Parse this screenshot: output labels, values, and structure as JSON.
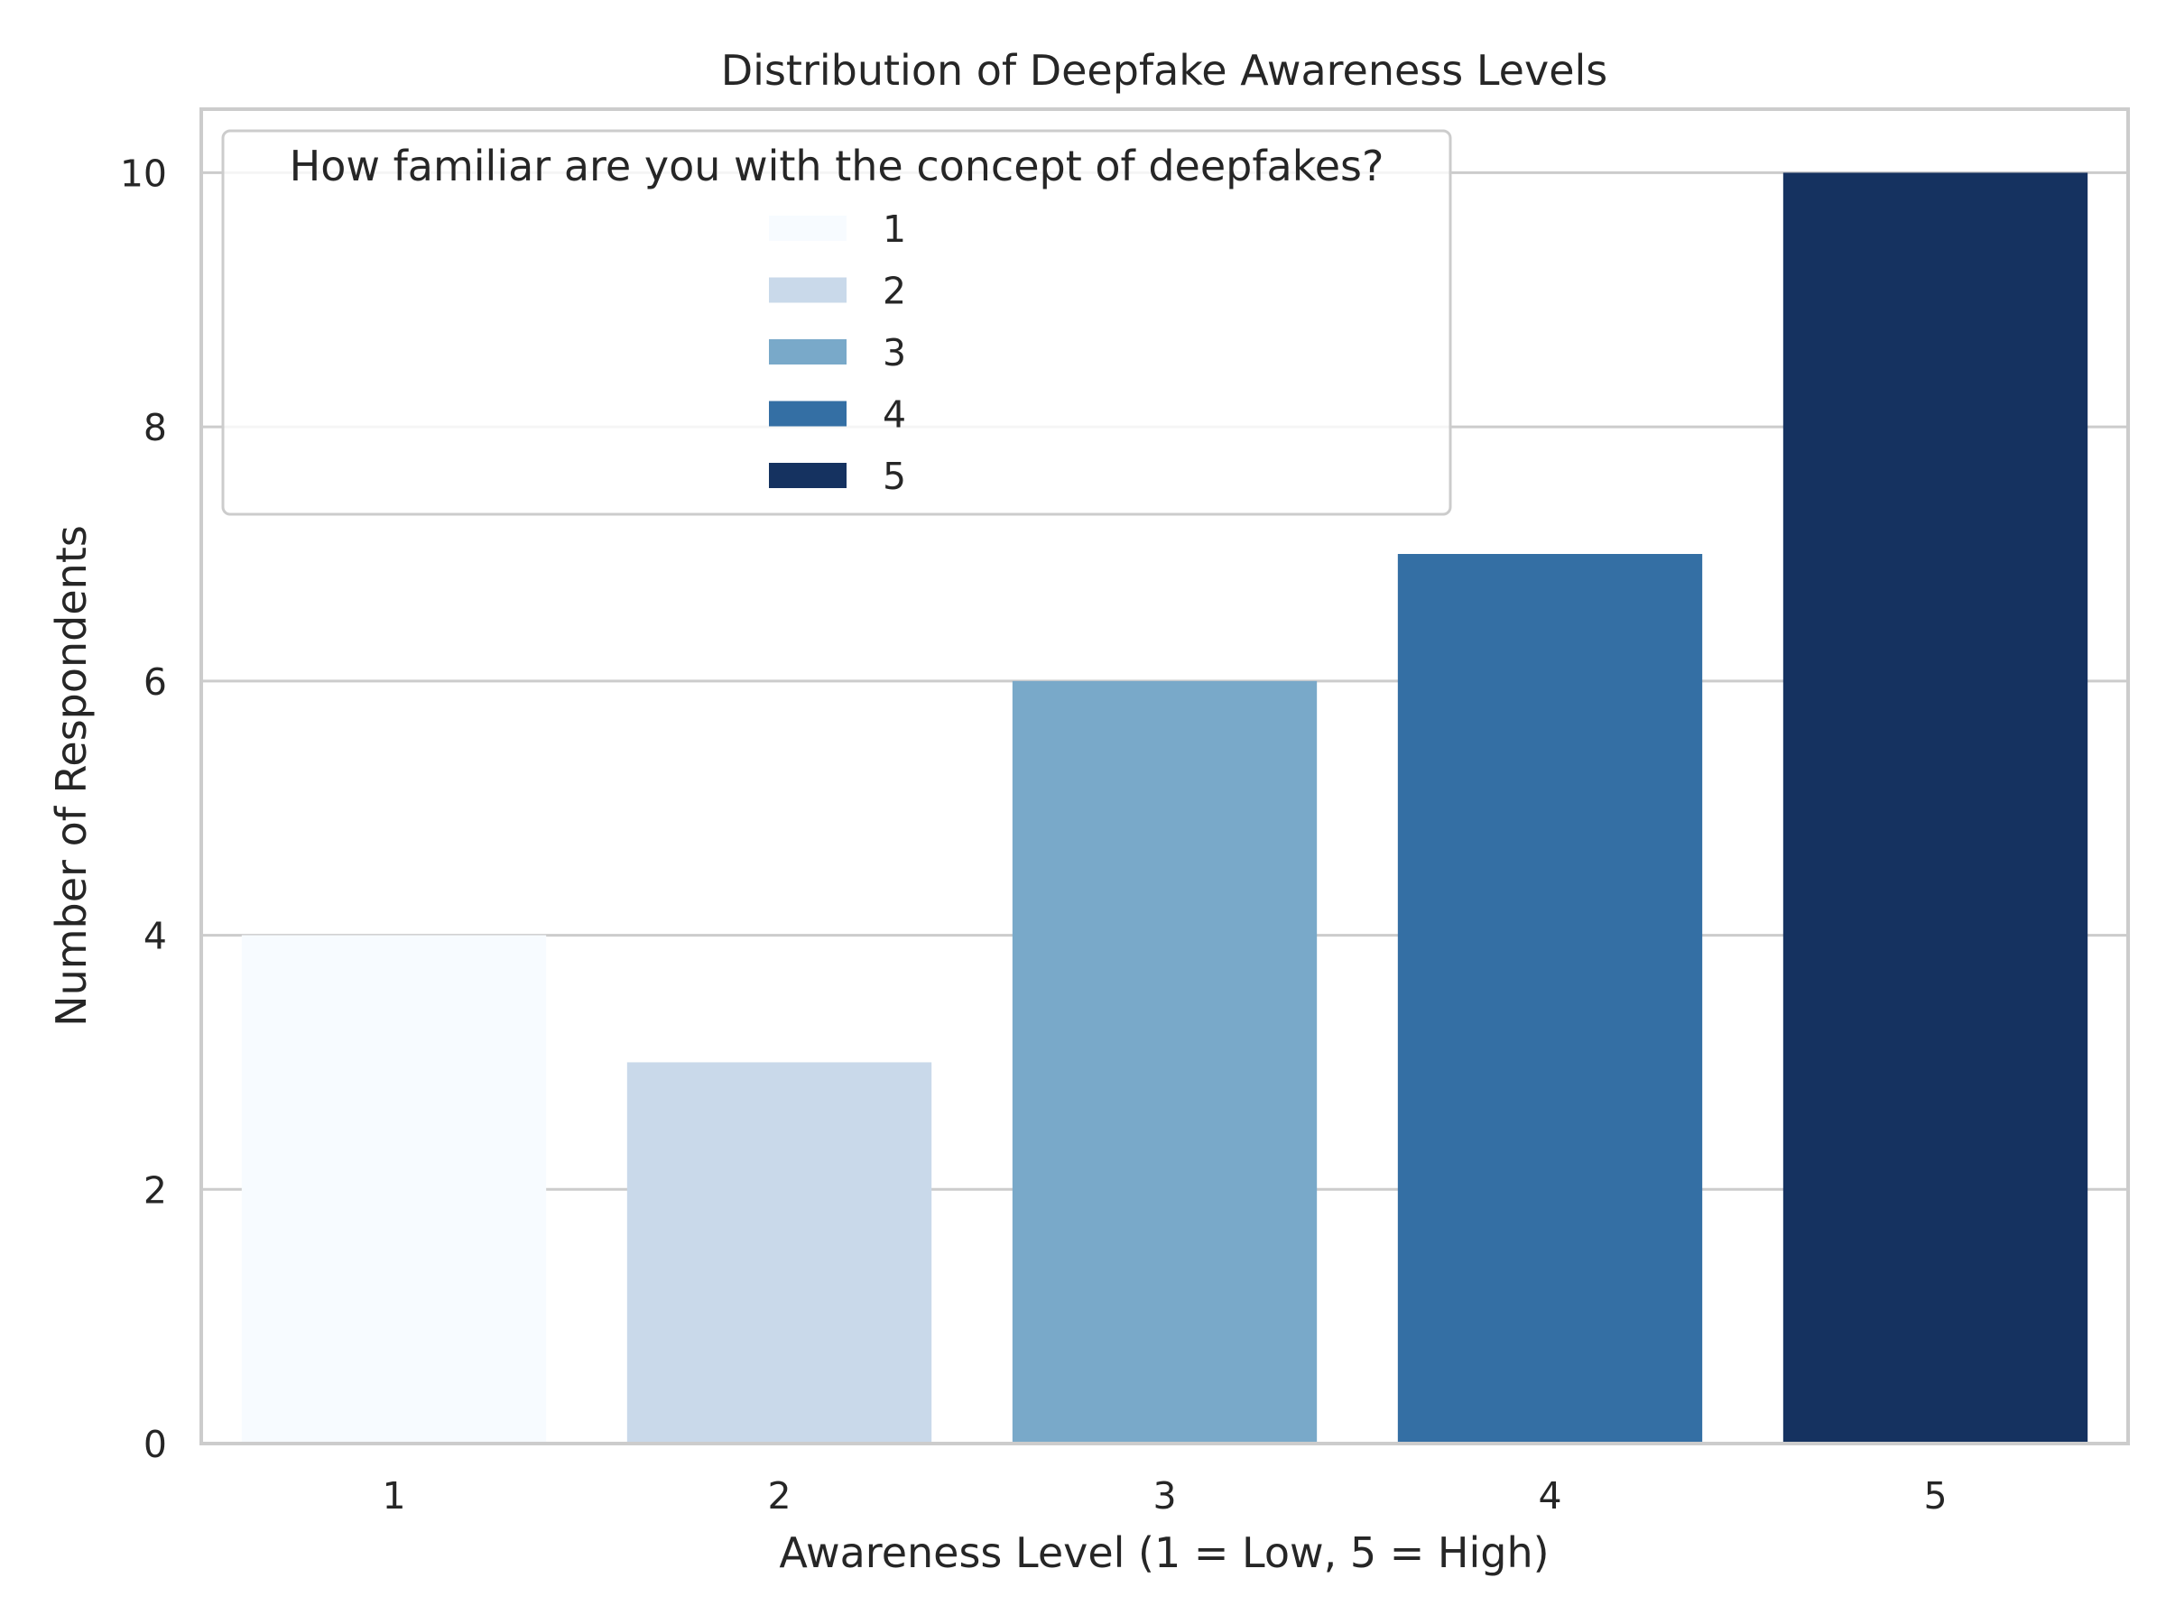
{
  "chart_data": {
    "type": "bar",
    "title": "Distribution of Deepfake Awareness Levels",
    "xlabel": "Awareness Level (1 = Low, 5 = High)",
    "ylabel": "Number of Respondents",
    "categories": [
      "1",
      "2",
      "3",
      "4",
      "5"
    ],
    "values": [
      4,
      3,
      6,
      7,
      10
    ],
    "colors": [
      "#f7fbff",
      "#c9d9ea",
      "#79a9c9",
      "#346fa4",
      "#153260"
    ],
    "ylim": [
      0,
      10.5
    ],
    "yticks": [
      0,
      2,
      4,
      6,
      8,
      10
    ],
    "grid": "y",
    "legend": {
      "title": "How familiar are you with the concept of deepfakes?",
      "placement": "top-left",
      "entries": [
        "1",
        "2",
        "3",
        "4",
        "5"
      ]
    }
  }
}
